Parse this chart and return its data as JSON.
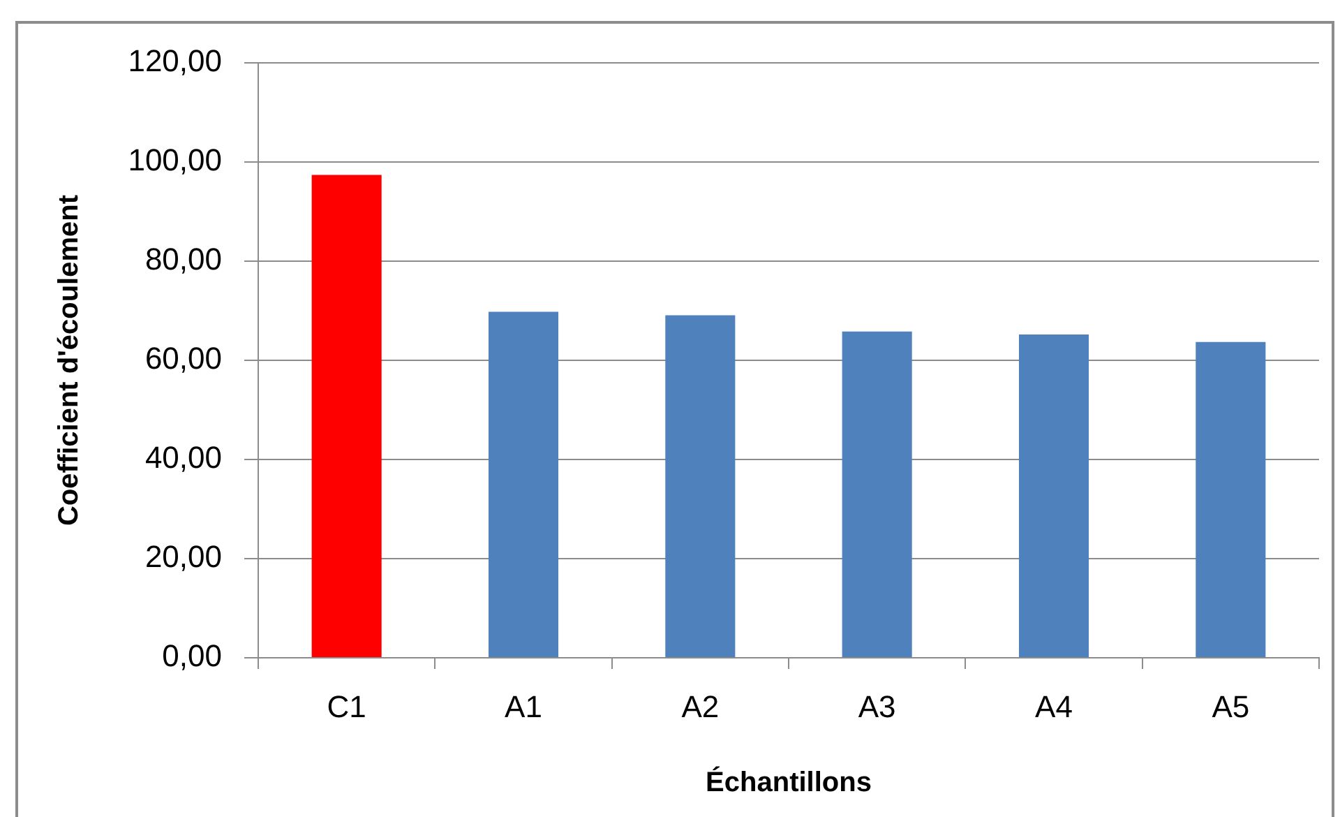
{
  "chart_data": {
    "type": "bar",
    "xlabel": "Échantillons",
    "ylabel": "Coefficient d'écoulement",
    "categories": [
      "C1",
      "A1",
      "A2",
      "A3",
      "A4",
      "A5"
    ],
    "values": [
      97.4,
      69.8,
      69.1,
      65.8,
      65.2,
      63.7
    ],
    "colors": [
      "#ff0000",
      "#4f81bd",
      "#4f81bd",
      "#4f81bd",
      "#4f81bd",
      "#4f81bd"
    ],
    "ylim": [
      0,
      120
    ],
    "yticks": [
      {
        "value": 0,
        "label": "0,00"
      },
      {
        "value": 20,
        "label": "20,00"
      },
      {
        "value": 40,
        "label": "40,00"
      },
      {
        "value": 60,
        "label": "60,00"
      },
      {
        "value": 80,
        "label": "80,00"
      },
      {
        "value": 100,
        "label": "100,00"
      },
      {
        "value": 120,
        "label": "120,00"
      }
    ],
    "grid": "y",
    "legend": false
  }
}
